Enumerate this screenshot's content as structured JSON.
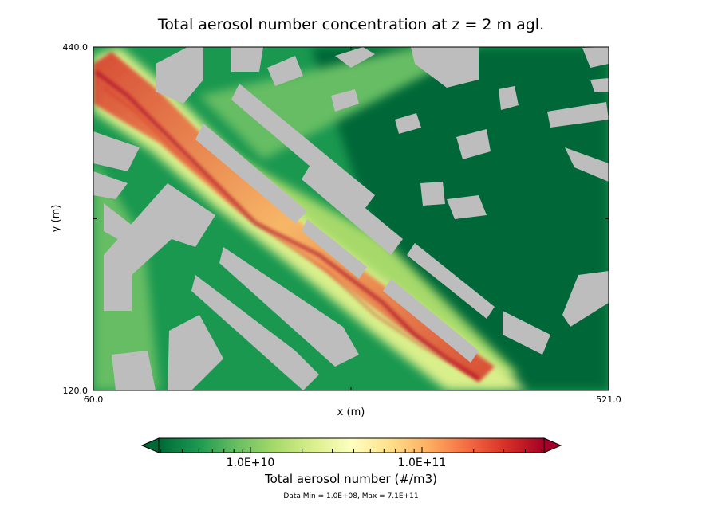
{
  "chart_data": {
    "type": "heatmap",
    "title": "Total aerosol number concentration at z = 2 m agl.",
    "xlabel": "x (m)",
    "ylabel": "y (m)",
    "xlim": [
      60.0,
      521.0
    ],
    "ylim": [
      120.0,
      440.0
    ],
    "x_ticks": [
      "60.0",
      "521.0"
    ],
    "y_ticks": [
      "440.0",
      "120.0"
    ],
    "grid": false,
    "colormap": {
      "name": "RdYlGn_r",
      "scale": "log",
      "colors": [
        "#006837",
        "#1a9850",
        "#66bd63",
        "#a6d96a",
        "#d9ef8b",
        "#ffffbf",
        "#fee08b",
        "#fdae61",
        "#f46d43",
        "#d73027",
        "#a50026"
      ],
      "extend": "both",
      "under_color": "#006837",
      "over_color": "#a50026",
      "building_color": "#bdbdbd"
    },
    "colorbar": {
      "label": "Total aerosol number (#/m3)",
      "ticks": [
        "1.0E+10",
        "1.0E+11"
      ],
      "orientation": "horizontal"
    },
    "footer": "Data Min = 1.0E+08, Max = 7.1E+11"
  }
}
